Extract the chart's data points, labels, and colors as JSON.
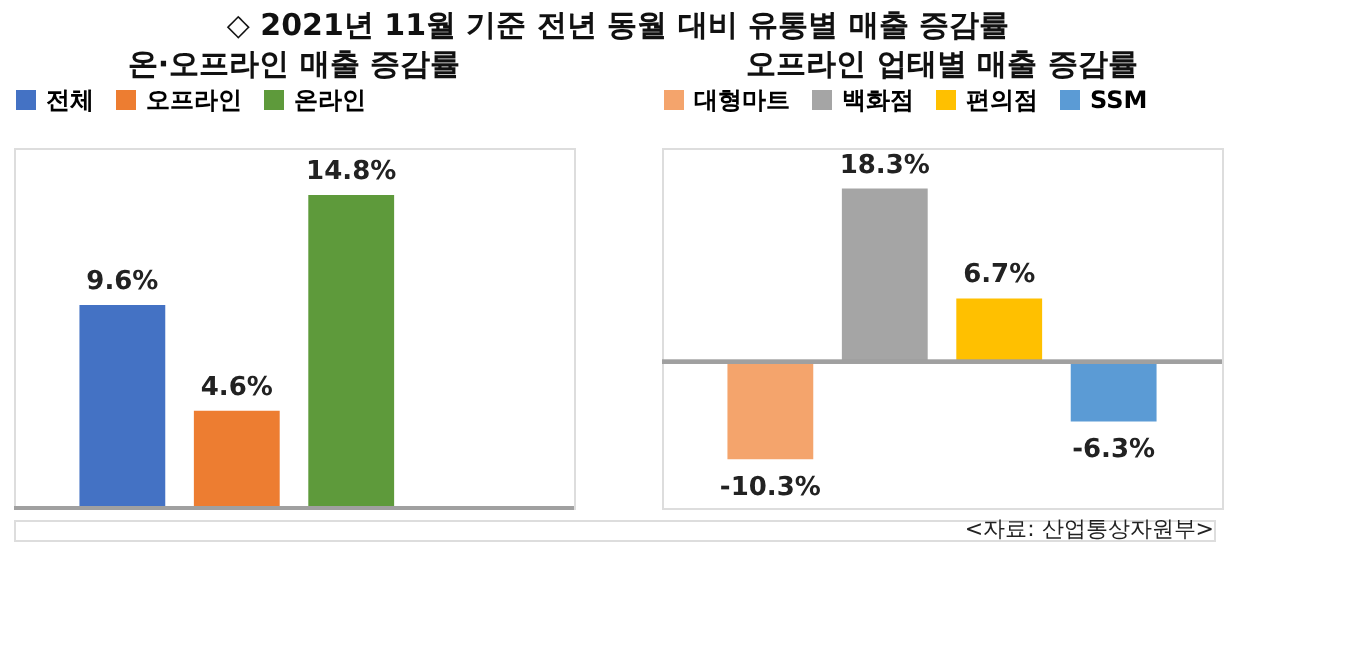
{
  "chart_data": [
    {
      "type": "bar",
      "title": "온·오프라인 매출 증감률",
      "annotations": [
        "◇ 2021년 11월 기준 전년 동월 대비 유통별 매출 증감률"
      ],
      "categories": [
        null
      ],
      "legend": "top",
      "tick_labels": false,
      "grid": false,
      "series": [
        {
          "name": "전체",
          "color": "#4472c4",
          "values": [
            9.6
          ],
          "value_labels": [
            "9.6%"
          ]
        },
        {
          "name": "오프라인",
          "color": "#ed7d31",
          "values": [
            4.6
          ],
          "value_labels": [
            "4.6%"
          ]
        },
        {
          "name": "온라인",
          "color": "#5e9a3b",
          "values": [
            14.8
          ],
          "value_labels": [
            "14.8%"
          ]
        }
      ]
    },
    {
      "type": "bar",
      "title": "오프라인 업태별 매출 증감률",
      "annotations": [
        "<자료: 산업통상자원부>"
      ],
      "categories": [
        null
      ],
      "legend": "top",
      "tick_labels": false,
      "grid": false,
      "series": [
        {
          "name": "대형마트",
          "color": "#f4a46c",
          "values": [
            -10.3
          ],
          "value_labels": [
            "-10.3%"
          ]
        },
        {
          "name": "백화점",
          "color": "#a5a5a5",
          "values": [
            18.3
          ],
          "value_labels": [
            "18.3%"
          ]
        },
        {
          "name": "편의점",
          "color": "#ffc000",
          "values": [
            6.7
          ],
          "value_labels": [
            "6.7%"
          ]
        },
        {
          "name": "SSM",
          "color": "#5b9bd5",
          "values": [
            -6.3
          ],
          "value_labels": [
            "-6.3%"
          ]
        }
      ]
    }
  ]
}
